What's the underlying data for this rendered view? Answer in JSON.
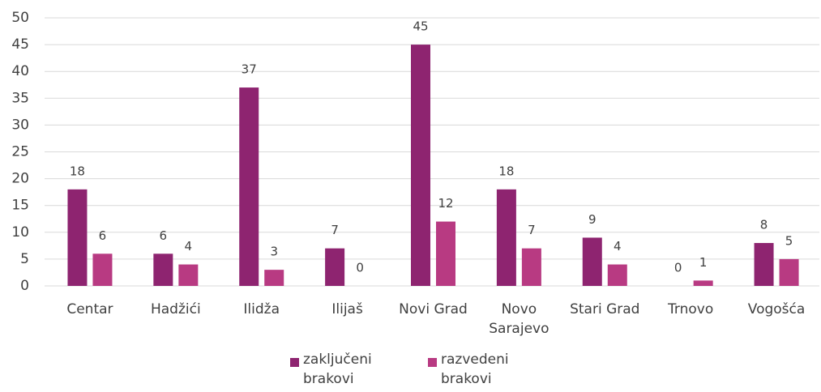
{
  "chart_data": {
    "type": "bar",
    "categories": [
      "Centar",
      "Hadžići",
      "Ilidža",
      "Ilijaš",
      "Novi Grad",
      "Novo Sarajevo",
      "Stari Grad",
      "Trnovo",
      "Vogošća"
    ],
    "series": [
      {
        "name": "zaključeni brakovi",
        "color": "#8e2470",
        "values": [
          18,
          6,
          37,
          7,
          45,
          18,
          9,
          0,
          8
        ]
      },
      {
        "name": "razvedeni brakovi",
        "color": "#b83a82",
        "values": [
          6,
          4,
          3,
          0,
          12,
          7,
          4,
          1,
          5
        ]
      }
    ],
    "ylim": [
      0,
      50
    ],
    "yticks": [
      0,
      5,
      10,
      15,
      20,
      25,
      30,
      35,
      40,
      45,
      50
    ],
    "grid": true,
    "legend": "bottom"
  }
}
